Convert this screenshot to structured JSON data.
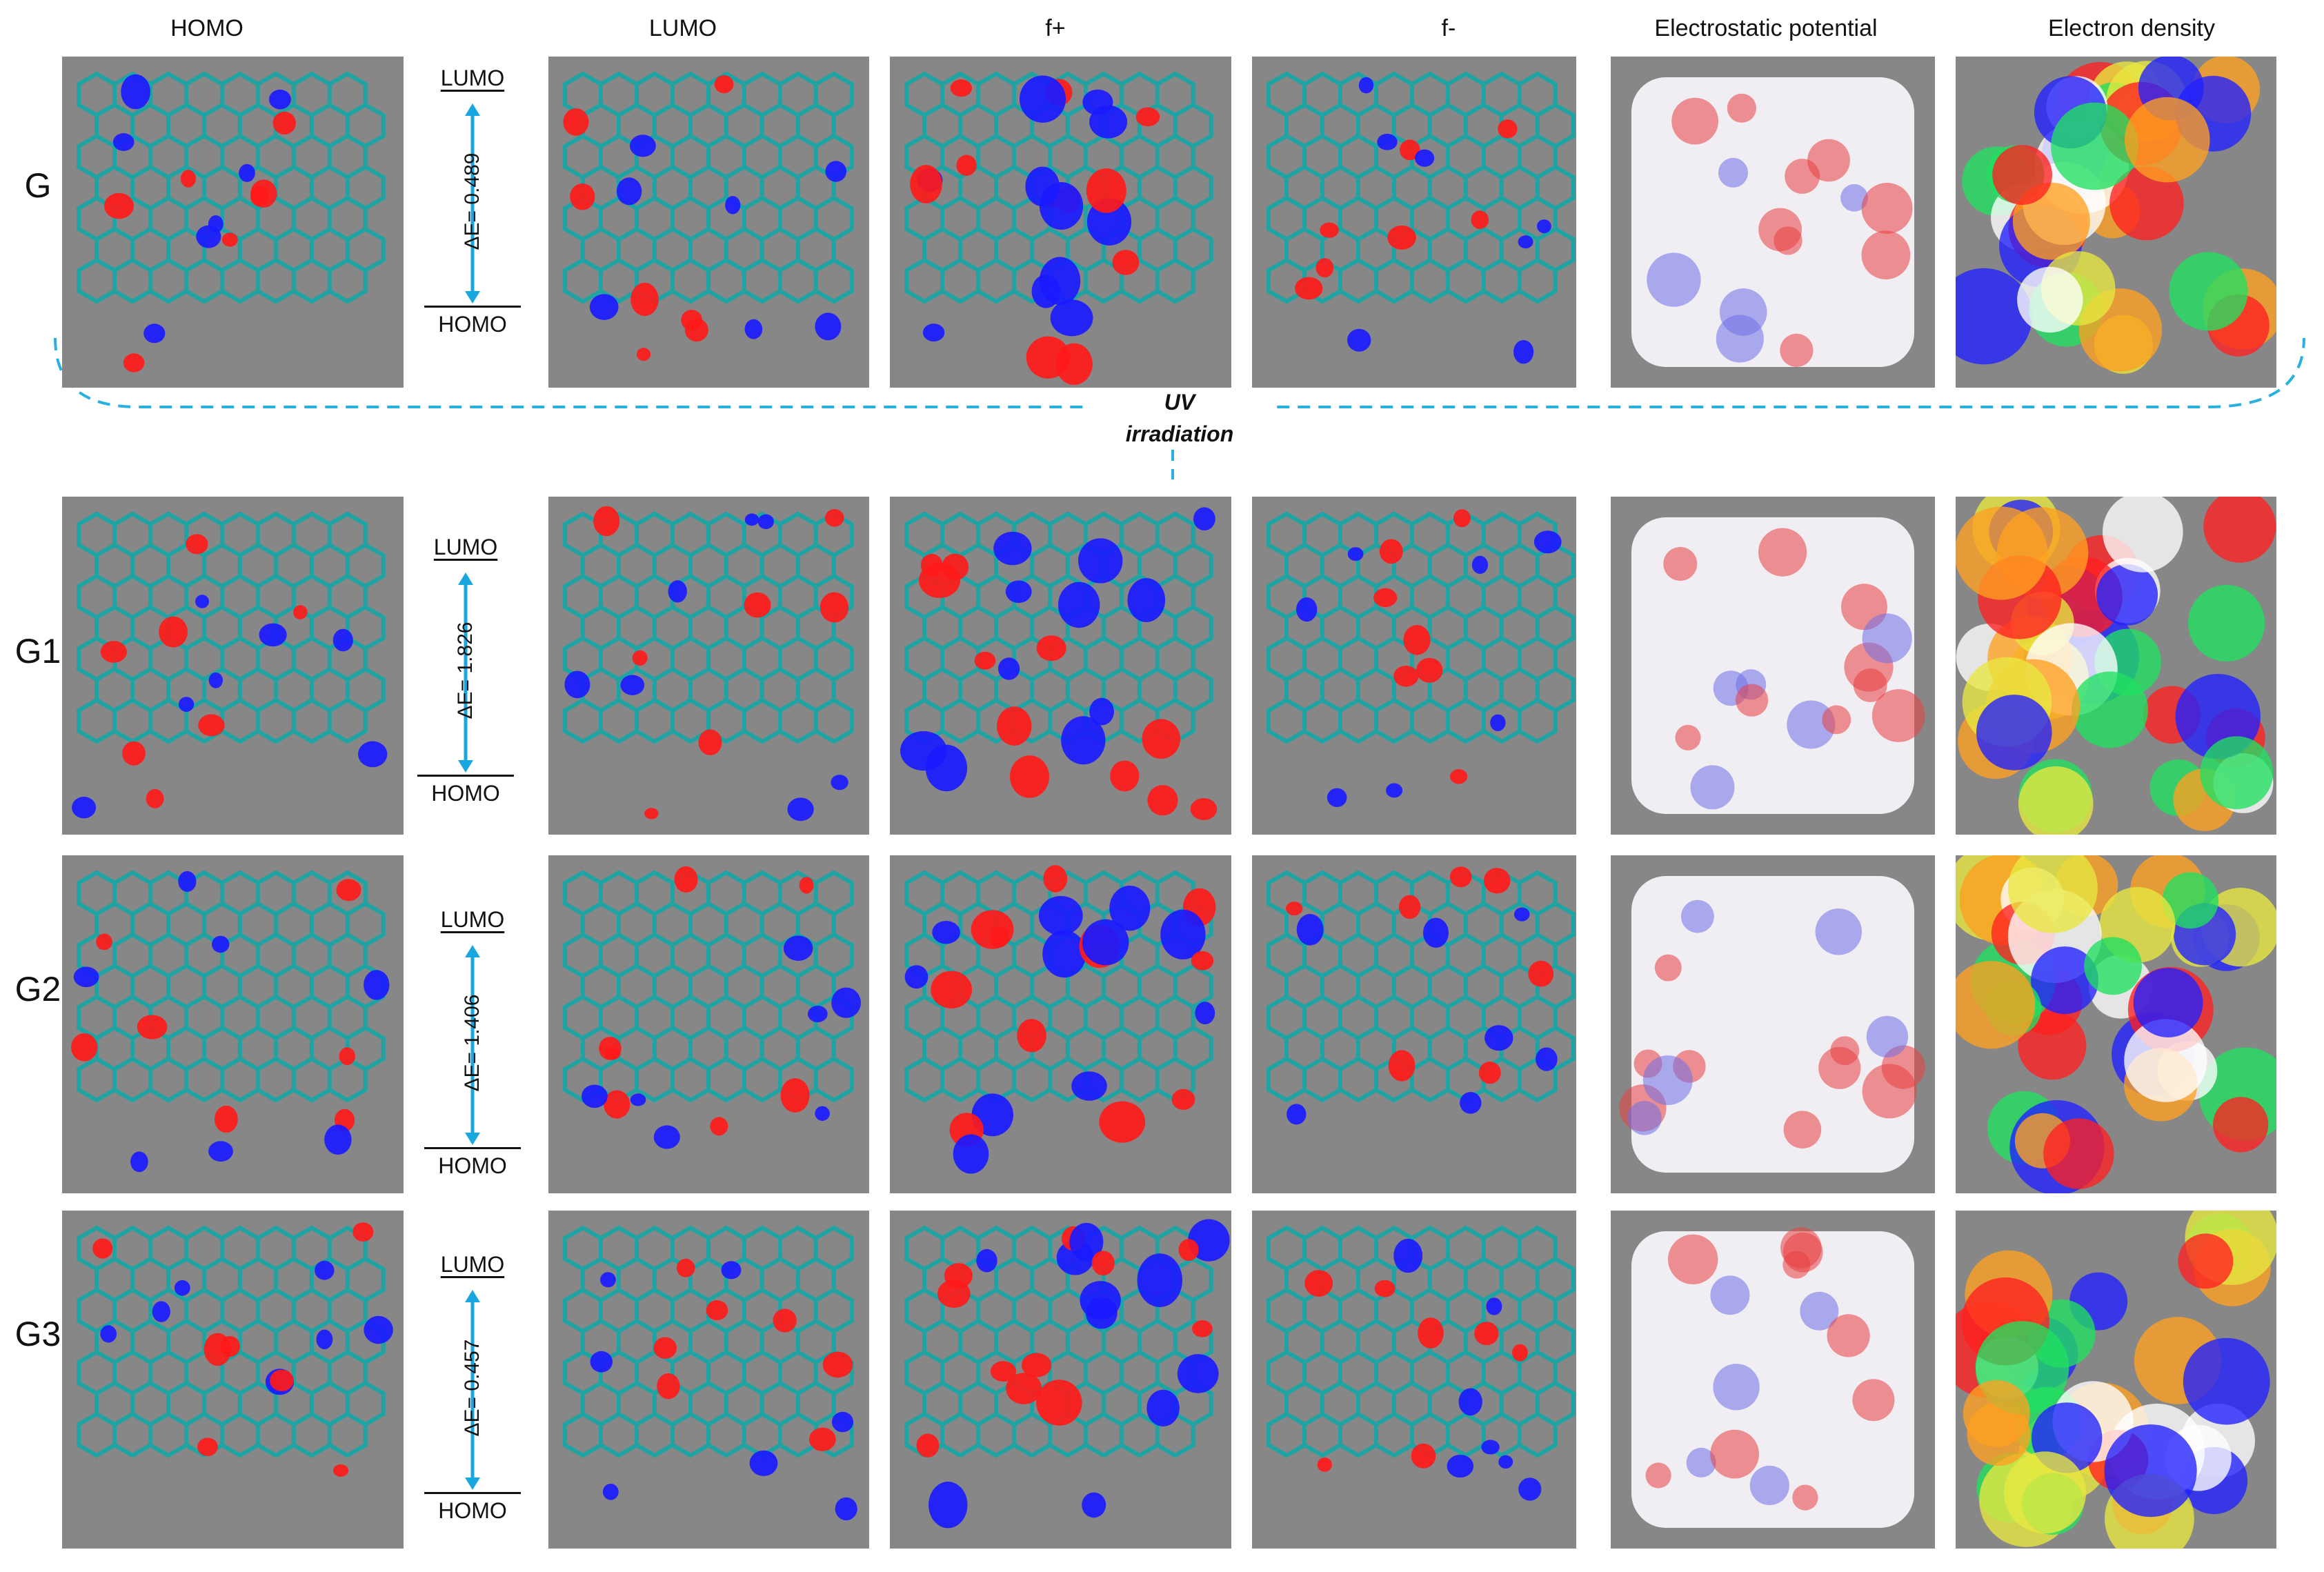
{
  "columns": [
    "HOMO",
    "LUMO",
    "f+",
    "f-",
    "Electrostatic potential",
    "Electron density"
  ],
  "rows": [
    {
      "label": "G",
      "gap": "ΔE= 0.489"
    },
    {
      "label": "G1",
      "gap": "ΔE= 1.826"
    },
    {
      "label": "G2",
      "gap": "ΔE= 1.406"
    },
    {
      "label": "G3",
      "gap": "ΔE= 0.457"
    }
  ],
  "gap_top_label": "LUMO",
  "gap_bottom_label": "HOMO",
  "uv_label": [
    "UV",
    "irradiation"
  ],
  "colors": {
    "tile_bg": "#878787",
    "bond": "#1fa3a3",
    "lobe_positive": "#ff1a1a",
    "lobe_negative": "#1a1aff",
    "arrow": "#1aa7e0",
    "dashed_line": "#2ab0e0",
    "density": [
      "#ff2020",
      "#2020ff",
      "#20e060",
      "#ffa020",
      "#e8e840",
      "#ffffff"
    ]
  }
}
